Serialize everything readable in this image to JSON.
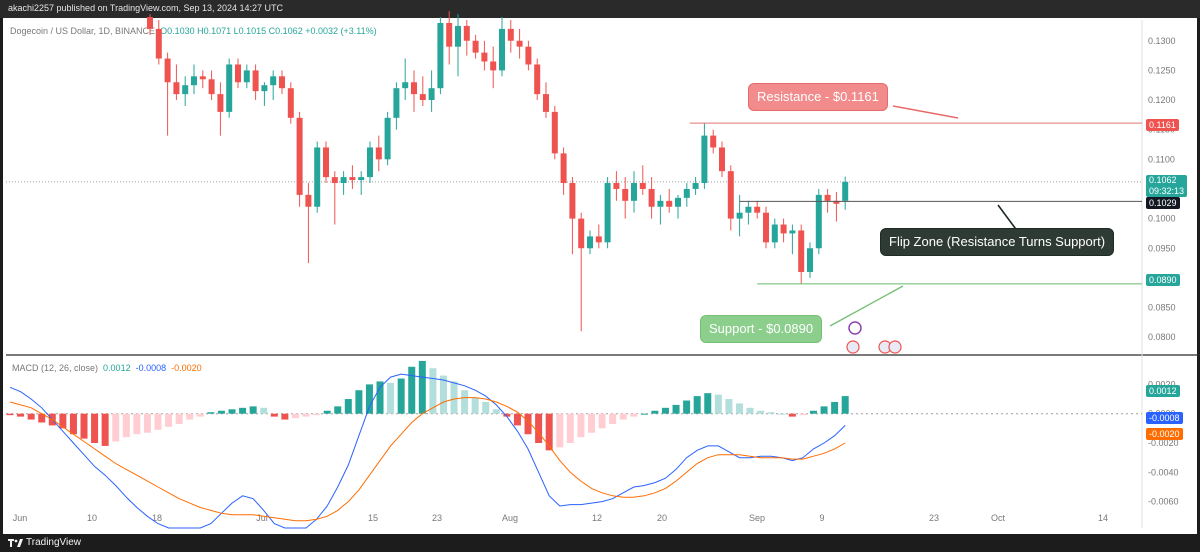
{
  "header": {
    "publisher_line": "akachi2257 published on TradingView.com, Sep 13, 2024 14:27 UTC"
  },
  "footer": {
    "brand": "TradingView"
  },
  "legend": {
    "symbol": "Dogecoin / US Dollar, 1D, BINANCE",
    "ohlc": "O0.1030  H0.1071  L0.1015  C0.1062  +0.0032 (+3.11%)"
  },
  "annotations": {
    "resistance": "Resistance - $0.1161",
    "support": "Support - $0.0890",
    "flip": "Flip Zone (Resistance Turns Support)"
  },
  "price_tags": {
    "resistance": "0.1161",
    "current": "0.1062",
    "countdown": "09:32:13",
    "flip": "0.1029",
    "support": "0.0890"
  },
  "macd_legend": {
    "label": "MACD (12, 26, close)",
    "v1": "0.0012",
    "v2": "-0.0008",
    "v3": "-0.0020"
  },
  "macd_tags": {
    "hist": "0.0012",
    "macd": "-0.0008",
    "signal": "-0.0020"
  },
  "colors": {
    "up": "#26a69a",
    "down": "#ef5350",
    "macd_line": "#2962ff",
    "signal_line": "#ff6d00",
    "res_line": "#e57373",
    "sup_line": "#66bb6a",
    "flip_line": "#555555"
  },
  "chart_data": {
    "type": "candlestick",
    "title": "Dogecoin / US Dollar, 1D, BINANCE",
    "x_ticks": [
      "Jun",
      "10",
      "18",
      "Jul",
      "15",
      "23",
      "Aug",
      "12",
      "20",
      "Sep",
      "9",
      "23",
      "Oct",
      "14"
    ],
    "y_ticks": [
      "0.1300",
      "0.1250",
      "0.1200",
      "0.1150",
      "0.1100",
      "0.1050",
      "0.1000",
      "0.0950",
      "0.0900",
      "0.0850",
      "0.0800"
    ],
    "ylim": [
      0.0775,
      0.1335
    ],
    "levels": {
      "resistance": 0.1161,
      "flip": 0.1029,
      "support": 0.089
    },
    "candles": [
      {
        "o": 0.134,
        "h": 0.1345,
        "l": 0.131,
        "c": 0.132
      },
      {
        "o": 0.132,
        "h": 0.1335,
        "l": 0.126,
        "c": 0.127
      },
      {
        "o": 0.127,
        "h": 0.128,
        "l": 0.114,
        "c": 0.123
      },
      {
        "o": 0.123,
        "h": 0.126,
        "l": 0.12,
        "c": 0.121
      },
      {
        "o": 0.121,
        "h": 0.124,
        "l": 0.119,
        "c": 0.1225
      },
      {
        "o": 0.1225,
        "h": 0.126,
        "l": 0.121,
        "c": 0.124
      },
      {
        "o": 0.124,
        "h": 0.125,
        "l": 0.122,
        "c": 0.1235
      },
      {
        "o": 0.1235,
        "h": 0.125,
        "l": 0.12,
        "c": 0.121
      },
      {
        "o": 0.121,
        "h": 0.123,
        "l": 0.114,
        "c": 0.118
      },
      {
        "o": 0.118,
        "h": 0.127,
        "l": 0.117,
        "c": 0.126
      },
      {
        "o": 0.126,
        "h": 0.127,
        "l": 0.122,
        "c": 0.123
      },
      {
        "o": 0.123,
        "h": 0.126,
        "l": 0.122,
        "c": 0.125
      },
      {
        "o": 0.125,
        "h": 0.126,
        "l": 0.12,
        "c": 0.1215
      },
      {
        "o": 0.1215,
        "h": 0.123,
        "l": 0.119,
        "c": 0.1225
      },
      {
        "o": 0.1225,
        "h": 0.125,
        "l": 0.12,
        "c": 0.124
      },
      {
        "o": 0.124,
        "h": 0.125,
        "l": 0.121,
        "c": 0.122
      },
      {
        "o": 0.122,
        "h": 0.123,
        "l": 0.116,
        "c": 0.117
      },
      {
        "o": 0.117,
        "h": 0.118,
        "l": 0.102,
        "c": 0.104
      },
      {
        "o": 0.104,
        "h": 0.106,
        "l": 0.0925,
        "c": 0.102
      },
      {
        "o": 0.102,
        "h": 0.113,
        "l": 0.101,
        "c": 0.112
      },
      {
        "o": 0.112,
        "h": 0.113,
        "l": 0.106,
        "c": 0.107
      },
      {
        "o": 0.107,
        "h": 0.108,
        "l": 0.099,
        "c": 0.106
      },
      {
        "o": 0.106,
        "h": 0.108,
        "l": 0.104,
        "c": 0.107
      },
      {
        "o": 0.107,
        "h": 0.109,
        "l": 0.105,
        "c": 0.1065
      },
      {
        "o": 0.1065,
        "h": 0.108,
        "l": 0.104,
        "c": 0.107
      },
      {
        "o": 0.107,
        "h": 0.113,
        "l": 0.106,
        "c": 0.112
      },
      {
        "o": 0.112,
        "h": 0.114,
        "l": 0.108,
        "c": 0.11
      },
      {
        "o": 0.11,
        "h": 0.118,
        "l": 0.109,
        "c": 0.117
      },
      {
        "o": 0.117,
        "h": 0.123,
        "l": 0.115,
        "c": 0.122
      },
      {
        "o": 0.122,
        "h": 0.127,
        "l": 0.12,
        "c": 0.123
      },
      {
        "o": 0.123,
        "h": 0.125,
        "l": 0.118,
        "c": 0.121
      },
      {
        "o": 0.121,
        "h": 0.124,
        "l": 0.119,
        "c": 0.12
      },
      {
        "o": 0.12,
        "h": 0.125,
        "l": 0.118,
        "c": 0.122
      },
      {
        "o": 0.122,
        "h": 0.134,
        "l": 0.121,
        "c": 0.133
      },
      {
        "o": 0.133,
        "h": 0.135,
        "l": 0.126,
        "c": 0.129
      },
      {
        "o": 0.129,
        "h": 0.1345,
        "l": 0.124,
        "c": 0.1325
      },
      {
        "o": 0.1325,
        "h": 0.1335,
        "l": 0.1275,
        "c": 0.13
      },
      {
        "o": 0.13,
        "h": 0.131,
        "l": 0.127,
        "c": 0.128
      },
      {
        "o": 0.128,
        "h": 0.13,
        "l": 0.125,
        "c": 0.1265
      },
      {
        "o": 0.1265,
        "h": 0.129,
        "l": 0.122,
        "c": 0.125
      },
      {
        "o": 0.125,
        "h": 0.134,
        "l": 0.124,
        "c": 0.132
      },
      {
        "o": 0.132,
        "h": 0.1335,
        "l": 0.128,
        "c": 0.13
      },
      {
        "o": 0.13,
        "h": 0.132,
        "l": 0.127,
        "c": 0.129
      },
      {
        "o": 0.129,
        "h": 0.13,
        "l": 0.125,
        "c": 0.126
      },
      {
        "o": 0.126,
        "h": 0.127,
        "l": 0.12,
        "c": 0.121
      },
      {
        "o": 0.121,
        "h": 0.123,
        "l": 0.117,
        "c": 0.118
      },
      {
        "o": 0.118,
        "h": 0.119,
        "l": 0.11,
        "c": 0.111
      },
      {
        "o": 0.111,
        "h": 0.112,
        "l": 0.104,
        "c": 0.106
      },
      {
        "o": 0.106,
        "h": 0.107,
        "l": 0.094,
        "c": 0.1
      },
      {
        "o": 0.1,
        "h": 0.101,
        "l": 0.081,
        "c": 0.095
      },
      {
        "o": 0.095,
        "h": 0.098,
        "l": 0.094,
        "c": 0.097
      },
      {
        "o": 0.097,
        "h": 0.099,
        "l": 0.095,
        "c": 0.096
      },
      {
        "o": 0.096,
        "h": 0.107,
        "l": 0.095,
        "c": 0.106
      },
      {
        "o": 0.106,
        "h": 0.108,
        "l": 0.103,
        "c": 0.105
      },
      {
        "o": 0.105,
        "h": 0.107,
        "l": 0.1,
        "c": 0.103
      },
      {
        "o": 0.103,
        "h": 0.108,
        "l": 0.101,
        "c": 0.106
      },
      {
        "o": 0.106,
        "h": 0.109,
        "l": 0.104,
        "c": 0.105
      },
      {
        "o": 0.105,
        "h": 0.107,
        "l": 0.1,
        "c": 0.102
      },
      {
        "o": 0.102,
        "h": 0.104,
        "l": 0.099,
        "c": 0.103
      },
      {
        "o": 0.103,
        "h": 0.105,
        "l": 0.101,
        "c": 0.102
      },
      {
        "o": 0.102,
        "h": 0.104,
        "l": 0.1,
        "c": 0.1035
      },
      {
        "o": 0.1035,
        "h": 0.106,
        "l": 0.102,
        "c": 0.105
      },
      {
        "o": 0.105,
        "h": 0.107,
        "l": 0.104,
        "c": 0.106
      },
      {
        "o": 0.106,
        "h": 0.1161,
        "l": 0.105,
        "c": 0.114
      },
      {
        "o": 0.114,
        "h": 0.115,
        "l": 0.111,
        "c": 0.112
      },
      {
        "o": 0.112,
        "h": 0.113,
        "l": 0.107,
        "c": 0.108
      },
      {
        "o": 0.108,
        "h": 0.109,
        "l": 0.098,
        "c": 0.1
      },
      {
        "o": 0.1,
        "h": 0.104,
        "l": 0.097,
        "c": 0.101
      },
      {
        "o": 0.101,
        "h": 0.103,
        "l": 0.099,
        "c": 0.102
      },
      {
        "o": 0.102,
        "h": 0.103,
        "l": 0.1,
        "c": 0.101
      },
      {
        "o": 0.101,
        "h": 0.102,
        "l": 0.095,
        "c": 0.096
      },
      {
        "o": 0.096,
        "h": 0.1,
        "l": 0.095,
        "c": 0.099
      },
      {
        "o": 0.099,
        "h": 0.1,
        "l": 0.096,
        "c": 0.0975
      },
      {
        "o": 0.0975,
        "h": 0.099,
        "l": 0.094,
        "c": 0.098
      },
      {
        "o": 0.098,
        "h": 0.099,
        "l": 0.089,
        "c": 0.091
      },
      {
        "o": 0.091,
        "h": 0.096,
        "l": 0.09,
        "c": 0.095
      },
      {
        "o": 0.095,
        "h": 0.105,
        "l": 0.094,
        "c": 0.104
      },
      {
        "o": 0.104,
        "h": 0.105,
        "l": 0.101,
        "c": 0.103
      },
      {
        "o": 0.103,
        "h": 0.1045,
        "l": 0.0995,
        "c": 0.1025
      },
      {
        "o": 0.103,
        "h": 0.1071,
        "l": 0.1015,
        "c": 0.1062
      }
    ],
    "macd": {
      "label": "MACD (12, 26, close)",
      "y_ticks": [
        "0.0020",
        "0.0000",
        "-0.0020",
        "-0.0040",
        "-0.0060"
      ],
      "ylim": [
        -0.0078,
        0.0038
      ],
      "histogram": [
        -0.0001,
        -0.0002,
        -0.0004,
        -0.0006,
        -0.0008,
        -0.001,
        -0.0014,
        -0.0017,
        -0.002,
        -0.0022,
        -0.0019,
        -0.0016,
        -0.0014,
        -0.0013,
        -0.0011,
        -0.0009,
        -0.0007,
        -0.0004,
        -0.0002,
        0.0001,
        0.0002,
        0.0003,
        0.0004,
        0.0005,
        0.0004,
        -0.0002,
        -0.0004,
        -0.0003,
        -0.0002,
        -0.0001,
        0.0002,
        0.0005,
        0.001,
        0.0016,
        0.002,
        0.0022,
        0.0021,
        0.0024,
        0.0032,
        0.0036,
        0.0031,
        0.0026,
        0.0022,
        0.0016,
        0.0011,
        0.0008,
        0.0003,
        -0.0002,
        -0.0008,
        -0.0014,
        -0.002,
        -0.0025,
        -0.0023,
        -0.002,
        -0.0016,
        -0.0013,
        -0.001,
        -0.0007,
        -0.0004,
        -0.0002,
        0.0,
        0.0002,
        0.0004,
        0.0006,
        0.0009,
        0.0012,
        0.0014,
        0.0013,
        0.001,
        0.0007,
        0.0004,
        0.0002,
        0.0001,
        0.0,
        -0.0002,
        -0.0001,
        0.0002,
        0.0005,
        0.0008,
        0.0012
      ],
      "macd_line": [
        0.0018,
        0.0015,
        0.001,
        0.0004,
        -0.0004,
        -0.0012,
        -0.002,
        -0.0028,
        -0.0036,
        -0.0042,
        -0.0049,
        -0.0057,
        -0.0064,
        -0.007,
        -0.0075,
        -0.0078,
        -0.0078,
        -0.0078,
        -0.0078,
        -0.0075,
        -0.0068,
        -0.0061,
        -0.0056,
        -0.0058,
        -0.0066,
        -0.0075,
        -0.0078,
        -0.0078,
        -0.0078,
        -0.0072,
        -0.0063,
        -0.005,
        -0.0035,
        -0.0015,
        0.0005,
        0.0018,
        0.0025,
        0.0027,
        0.0026,
        0.0025,
        0.0024,
        0.0023,
        0.0021,
        0.0019,
        0.0016,
        0.0012,
        0.0006,
        -0.0002,
        -0.0012,
        -0.0024,
        -0.004,
        -0.0056,
        -0.0063,
        -0.0062,
        -0.0062,
        -0.0061,
        -0.006,
        -0.0058,
        -0.0054,
        -0.005,
        -0.0049,
        -0.0047,
        -0.0044,
        -0.0038,
        -0.003,
        -0.0025,
        -0.0022,
        -0.0022,
        -0.0026,
        -0.003,
        -0.003,
        -0.0029,
        -0.0029,
        -0.003,
        -0.0032,
        -0.003,
        -0.0024,
        -0.002,
        -0.0015,
        -0.0008
      ],
      "signal_line": [
        0.0008,
        0.0006,
        0.0004,
        0.0,
        -0.0004,
        -0.0009,
        -0.0014,
        -0.0019,
        -0.0024,
        -0.0029,
        -0.0034,
        -0.0038,
        -0.0042,
        -0.0046,
        -0.005,
        -0.0054,
        -0.0058,
        -0.0061,
        -0.0064,
        -0.0066,
        -0.0068,
        -0.0069,
        -0.0069,
        -0.0069,
        -0.007,
        -0.0071,
        -0.0072,
        -0.0073,
        -0.0073,
        -0.0072,
        -0.007,
        -0.0066,
        -0.006,
        -0.0052,
        -0.0042,
        -0.0032,
        -0.0022,
        -0.0014,
        -0.0006,
        0.0,
        0.0004,
        0.0008,
        0.001,
        0.0011,
        0.0011,
        0.001,
        0.0008,
        0.0005,
        0.0001,
        -0.0005,
        -0.0013,
        -0.0022,
        -0.0032,
        -0.004,
        -0.0046,
        -0.0051,
        -0.0054,
        -0.0056,
        -0.0057,
        -0.0057,
        -0.0056,
        -0.0054,
        -0.0051,
        -0.0046,
        -0.004,
        -0.0034,
        -0.003,
        -0.0028,
        -0.0028,
        -0.0028,
        -0.0029,
        -0.003,
        -0.003,
        -0.003,
        -0.0031,
        -0.0031,
        -0.0029,
        -0.0027,
        -0.0024,
        -0.002
      ]
    }
  }
}
